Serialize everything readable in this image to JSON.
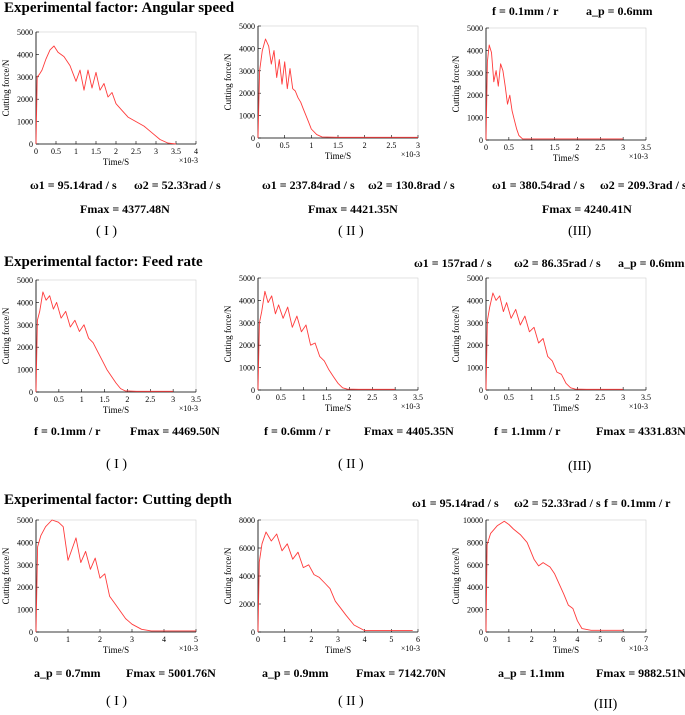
{
  "sections": [
    {
      "title": "Experimental factor: Angular speed",
      "conditions": [
        "f = 0.1mm / r",
        "a_p = 0.6mm"
      ],
      "labels": [
        {
          "params": [
            "ω1 = 95.14rad / s",
            "ω2 = 52.33rad / s"
          ],
          "fmax": "Fmax = 4377.48N",
          "roman": "( I )"
        },
        {
          "params": [
            "ω1 = 237.84rad / s",
            "ω2 = 130.8rad / s"
          ],
          "fmax": "Fmax = 4421.35N",
          "roman": "( II )"
        },
        {
          "params": [
            "ω1 = 380.54rad / s",
            "ω2 = 209.3rad / s"
          ],
          "fmax": "Fmax = 4240.41N",
          "roman": "(III)"
        }
      ]
    },
    {
      "title": "Experimental factor: Feed rate",
      "conditions": [
        "ω1 = 157rad / s",
        "ω2 = 86.35rad / s",
        "a_p = 0.6mm"
      ],
      "labels": [
        {
          "params": [
            "f = 0.1mm / r"
          ],
          "fmax": "Fmax = 4469.50N",
          "roman": "( I )"
        },
        {
          "params": [
            "f = 0.6mm / r"
          ],
          "fmax": "Fmax = 4405.35N",
          "roman": "( II )"
        },
        {
          "params": [
            "f = 1.1mm / r"
          ],
          "fmax": "Fmax = 4331.83N",
          "roman": "(III)"
        }
      ]
    },
    {
      "title": "Experimental factor: Cutting depth",
      "conditions": [
        "ω1 = 95.14rad / s",
        "ω2 = 52.33rad / s",
        "f = 0.1mm / r"
      ],
      "labels": [
        {
          "params": [
            "a_p = 0.7mm"
          ],
          "fmax": "Fmax = 5001.76N",
          "roman": "( I )"
        },
        {
          "params": [
            "a_p = 0.9mm"
          ],
          "fmax": "Fmax = 7142.70N",
          "roman": "( II )"
        },
        {
          "params": [
            "a_p = 1.1mm"
          ],
          "fmax": "Fmax = 9882.51N",
          "roman": "(III)"
        }
      ]
    }
  ],
  "chart_data": [
    {
      "type": "line",
      "xlabel": "Time/S",
      "ylabel": "Cutting force/N",
      "xscale": "×10-3",
      "xlim": [
        0,
        4
      ],
      "ylim": [
        0,
        5000
      ],
      "xticks": [
        0,
        0.5,
        1,
        1.5,
        2,
        2.5,
        3,
        3.5,
        4
      ],
      "yticks": [
        0,
        1000,
        2000,
        3000,
        4000,
        5000
      ],
      "x": [
        0,
        0.03,
        0.08,
        0.15,
        0.25,
        0.35,
        0.45,
        0.55,
        0.7,
        0.85,
        1.0,
        1.1,
        1.2,
        1.3,
        1.4,
        1.5,
        1.6,
        1.7,
        1.8,
        1.9,
        2.0,
        2.15,
        2.3,
        2.5,
        2.7,
        2.9,
        3.1,
        3.3,
        3.5
      ],
      "y": [
        0,
        3000,
        3100,
        3300,
        3800,
        4200,
        4377,
        4100,
        3900,
        3500,
        2800,
        3300,
        2400,
        3300,
        2500,
        3200,
        2400,
        2700,
        2100,
        2300,
        1800,
        1500,
        1200,
        1000,
        800,
        500,
        200,
        40,
        0
      ],
      "color": "#ff3b3b"
    },
    {
      "type": "line",
      "xlabel": "Time/S",
      "ylabel": "Cutting force/N",
      "xscale": "×10-3",
      "xlim": [
        0,
        3
      ],
      "ylim": [
        0,
        5000
      ],
      "xticks": [
        0,
        0.5,
        1,
        1.5,
        2,
        2.5,
        3
      ],
      "yticks": [
        0,
        1000,
        2000,
        3000,
        4000,
        5000
      ],
      "x": [
        0,
        0.03,
        0.08,
        0.14,
        0.2,
        0.25,
        0.3,
        0.35,
        0.4,
        0.45,
        0.5,
        0.55,
        0.6,
        0.65,
        0.7,
        0.75,
        0.8,
        0.85,
        0.9,
        0.95,
        1.0,
        1.1,
        1.2,
        1.5,
        2.0,
        2.5,
        3.0
      ],
      "y": [
        0,
        3000,
        3900,
        4421,
        4100,
        3300,
        3900,
        2700,
        3500,
        2400,
        3400,
        2200,
        3100,
        2200,
        2100,
        1800,
        1600,
        1300,
        1000,
        700,
        400,
        150,
        50,
        30,
        30,
        30,
        30
      ],
      "color": "#ff3b3b"
    },
    {
      "type": "line",
      "xlabel": "Time/S",
      "ylabel": "Cutting force/N",
      "xscale": "×10-3",
      "xlim": [
        0,
        3.5
      ],
      "ylim": [
        0,
        5000
      ],
      "xticks": [
        0,
        0.5,
        1,
        1.5,
        2,
        2.5,
        3,
        3.5
      ],
      "yticks": [
        0,
        1000,
        2000,
        3000,
        4000,
        5000
      ],
      "x": [
        0,
        0.03,
        0.07,
        0.12,
        0.17,
        0.22,
        0.27,
        0.32,
        0.37,
        0.42,
        0.47,
        0.52,
        0.57,
        0.62,
        0.67,
        0.72,
        0.8,
        1.0,
        1.5,
        2.0,
        2.5,
        3.0
      ],
      "y": [
        0,
        3500,
        4240,
        3900,
        2600,
        3100,
        2400,
        3400,
        3100,
        2400,
        1600,
        2000,
        1300,
        900,
        500,
        200,
        50,
        50,
        50,
        50,
        50,
        50
      ],
      "color": "#ff3b3b"
    },
    {
      "type": "line",
      "xlabel": "Time/S",
      "ylabel": "Cutting force/N",
      "xscale": "×10-3",
      "xlim": [
        0,
        3.5
      ],
      "ylim": [
        0,
        5000
      ],
      "xticks": [
        0,
        0.5,
        1,
        1.5,
        2,
        2.5,
        3,
        3.5
      ],
      "yticks": [
        0,
        1000,
        2000,
        3000,
        4000,
        5000
      ],
      "x": [
        0,
        0.03,
        0.08,
        0.15,
        0.22,
        0.3,
        0.38,
        0.45,
        0.55,
        0.65,
        0.75,
        0.85,
        0.95,
        1.05,
        1.15,
        1.25,
        1.35,
        1.45,
        1.55,
        1.65,
        1.75,
        1.85,
        1.95,
        2.2,
        2.6,
        3.0
      ],
      "y": [
        0,
        3200,
        3600,
        4470,
        4100,
        4300,
        3700,
        4000,
        3300,
        3600,
        2900,
        3200,
        2700,
        3000,
        2400,
        2200,
        1800,
        1400,
        1000,
        700,
        400,
        150,
        50,
        30,
        30,
        30
      ],
      "color": "#ff3b3b"
    },
    {
      "type": "line",
      "xlabel": "Time/S",
      "ylabel": "Cutting force/N",
      "xscale": "×10-3",
      "xlim": [
        0,
        3.5
      ],
      "ylim": [
        0,
        5000
      ],
      "xticks": [
        0,
        0.5,
        1,
        1.5,
        2,
        2.5,
        3,
        3.5
      ],
      "yticks": [
        0,
        1000,
        2000,
        3000,
        4000,
        5000
      ],
      "x": [
        0,
        0.03,
        0.08,
        0.15,
        0.22,
        0.3,
        0.38,
        0.45,
        0.55,
        0.65,
        0.75,
        0.85,
        0.95,
        1.05,
        1.15,
        1.25,
        1.35,
        1.45,
        1.55,
        1.65,
        1.75,
        1.85,
        1.95,
        2.2,
        2.6,
        3.0
      ],
      "y": [
        0,
        3000,
        3500,
        4405,
        3900,
        4200,
        3400,
        3800,
        3200,
        3700,
        2800,
        3300,
        2600,
        2900,
        2000,
        2100,
        1500,
        1300,
        900,
        600,
        300,
        100,
        40,
        30,
        30,
        30
      ],
      "color": "#ff3b3b"
    },
    {
      "type": "line",
      "xlabel": "Time/S",
      "ylabel": "Cutting force/N",
      "xscale": "×10-3",
      "xlim": [
        0,
        3.5
      ],
      "ylim": [
        0,
        5000
      ],
      "xticks": [
        0,
        0.5,
        1,
        1.5,
        2,
        2.5,
        3,
        3.5
      ],
      "yticks": [
        0,
        1000,
        2000,
        3000,
        4000,
        5000
      ],
      "x": [
        0,
        0.03,
        0.08,
        0.15,
        0.22,
        0.3,
        0.38,
        0.45,
        0.55,
        0.65,
        0.75,
        0.85,
        0.95,
        1.05,
        1.15,
        1.25,
        1.35,
        1.45,
        1.55,
        1.65,
        1.75,
        1.85,
        1.95,
        2.2,
        2.6,
        3.0
      ],
      "y": [
        0,
        3100,
        3700,
        4332,
        4000,
        4200,
        3500,
        3900,
        3200,
        3600,
        2900,
        3300,
        2600,
        2800,
        2100,
        2300,
        1500,
        1300,
        800,
        700,
        300,
        100,
        40,
        30,
        30,
        30
      ],
      "color": "#ff3b3b"
    },
    {
      "type": "line",
      "xlabel": "Time/S",
      "ylabel": "Cutting force/N",
      "xscale": "×10-3",
      "xlim": [
        0,
        5
      ],
      "ylim": [
        0,
        5000
      ],
      "xticks": [
        0,
        1,
        2,
        3,
        4,
        5
      ],
      "yticks": [
        0,
        1000,
        2000,
        3000,
        4000,
        5000
      ],
      "x": [
        0,
        0.05,
        0.15,
        0.3,
        0.5,
        0.7,
        0.85,
        1.0,
        1.1,
        1.25,
        1.4,
        1.55,
        1.7,
        1.85,
        2.0,
        2.15,
        2.3,
        2.45,
        2.6,
        2.8,
        3.0,
        3.3,
        3.6,
        4.0,
        5.0
      ],
      "y": [
        0,
        3800,
        4300,
        4700,
        5000,
        4900,
        4700,
        3200,
        3600,
        4200,
        3100,
        3600,
        2800,
        3300,
        2400,
        2600,
        1600,
        1300,
        1000,
        600,
        350,
        120,
        50,
        50,
        50
      ],
      "color": "#ff3b3b"
    },
    {
      "type": "line",
      "xlabel": "Time/S",
      "ylabel": "Cutting force/N",
      "xscale": "×10-3",
      "xlim": [
        0,
        6
      ],
      "ylim": [
        0,
        8000
      ],
      "xticks": [
        0,
        1,
        2,
        3,
        4,
        5,
        6
      ],
      "yticks": [
        0,
        2000,
        4000,
        6000,
        8000
      ],
      "x": [
        0,
        0.05,
        0.15,
        0.3,
        0.5,
        0.7,
        0.9,
        1.1,
        1.3,
        1.5,
        1.7,
        1.9,
        2.1,
        2.3,
        2.5,
        2.7,
        2.9,
        3.1,
        3.3,
        3.6,
        4.0,
        5.0,
        5.8
      ],
      "y": [
        0,
        5000,
        6300,
        7143,
        6500,
        7000,
        5800,
        6300,
        5200,
        5700,
        4600,
        4800,
        4100,
        3900,
        3500,
        3100,
        2200,
        1700,
        1200,
        500,
        100,
        100,
        100
      ],
      "color": "#ff3b3b"
    },
    {
      "type": "line",
      "xlabel": "Time/S",
      "ylabel": "Cutting force/N",
      "xscale": "×10-3",
      "xlim": [
        0,
        7
      ],
      "ylim": [
        0,
        10000
      ],
      "xticks": [
        0,
        1,
        2,
        3,
        4,
        5,
        6,
        7
      ],
      "yticks": [
        0,
        2000,
        4000,
        6000,
        8000,
        10000
      ],
      "x": [
        0,
        0.05,
        0.2,
        0.5,
        0.8,
        1.0,
        1.2,
        1.5,
        1.8,
        2.1,
        2.3,
        2.5,
        2.8,
        3.0,
        3.2,
        3.4,
        3.6,
        3.8,
        4.0,
        4.2,
        4.6,
        5.0,
        6.0
      ],
      "y": [
        0,
        7800,
        8800,
        9500,
        9883,
        9600,
        9200,
        8700,
        8000,
        6500,
        5900,
        6200,
        5800,
        5200,
        4300,
        3400,
        2400,
        2100,
        1000,
        300,
        150,
        150,
        150
      ],
      "color": "#ff3b3b"
    }
  ]
}
